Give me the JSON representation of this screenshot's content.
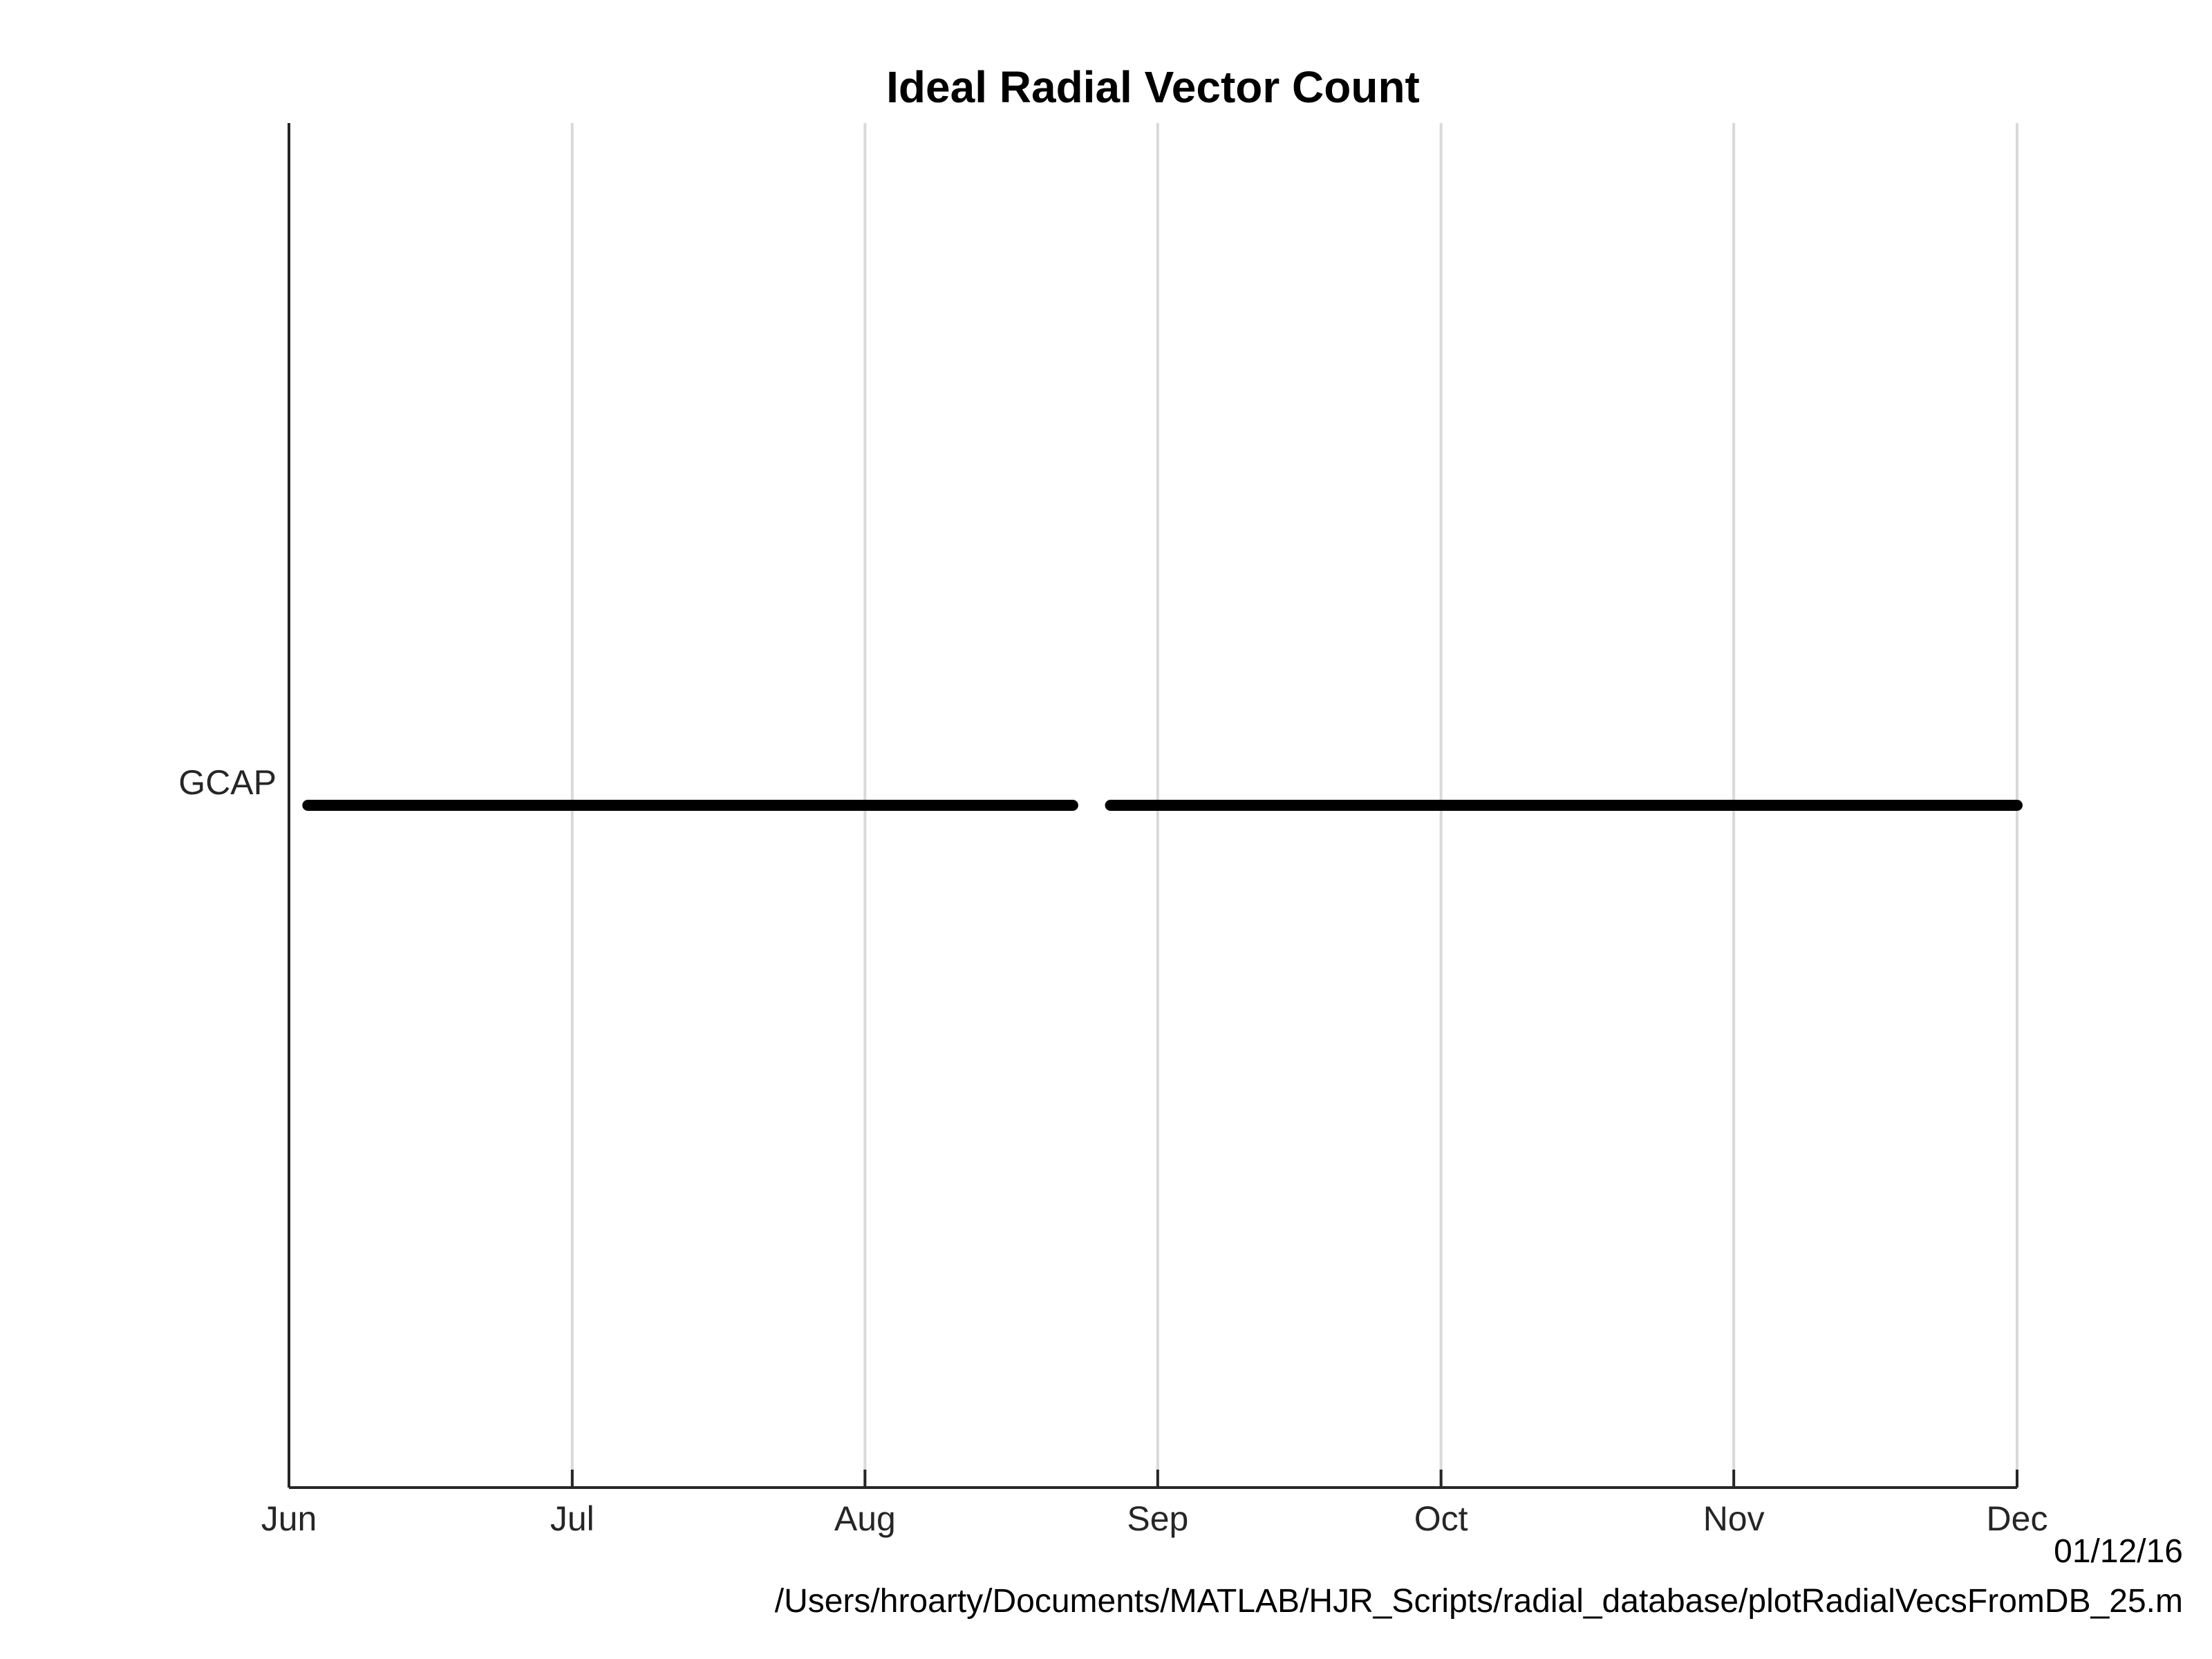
{
  "chart_data": {
    "type": "line",
    "title": "Ideal Radial Vector Count",
    "xlabel": "",
    "ylabel": "",
    "x_axis_type": "date",
    "xlim": [
      "2015-06-01",
      "2015-12-01"
    ],
    "x_ticks": [
      {
        "date": "2015-06-01",
        "label": "Jun"
      },
      {
        "date": "2015-07-01",
        "label": "Jul"
      },
      {
        "date": "2015-08-01",
        "label": "Aug"
      },
      {
        "date": "2015-09-01",
        "label": "Sep"
      },
      {
        "date": "2015-10-01",
        "label": "Oct"
      },
      {
        "date": "2015-11-01",
        "label": "Nov"
      },
      {
        "date": "2015-12-01",
        "label": "Dec"
      }
    ],
    "y_categories": [
      "GCAP"
    ],
    "grid": {
      "x": true,
      "y": false
    },
    "line_color": "#000000",
    "grid_color": "#d9d9d9",
    "axis_color": "#262626",
    "series": [
      {
        "category": "GCAP",
        "segments": [
          {
            "start": "2015-06-03",
            "end": "2015-08-23"
          },
          {
            "start": "2015-08-27",
            "end": "2015-12-01"
          }
        ]
      }
    ]
  },
  "footer": {
    "date": "01/12/16",
    "path": "/Users/hroarty/Documents/MATLAB/HJR_Scripts/radial_database/plotRadialVecsFromDB_25.m"
  }
}
